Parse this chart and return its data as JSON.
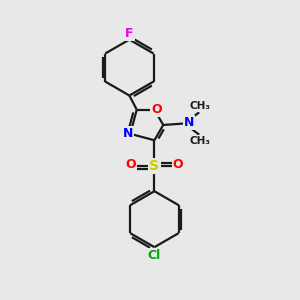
{
  "background_color": "#e8e8e8",
  "line_color": "#1a1a1a",
  "atom_colors": {
    "F": "#ee00ee",
    "O": "#ff0000",
    "N": "#0000ff",
    "S": "#cccc00",
    "Cl": "#00aa00",
    "C": "#1a1a1a"
  },
  "figsize": [
    3.0,
    3.0
  ],
  "dpi": 100,
  "lw": 1.6
}
